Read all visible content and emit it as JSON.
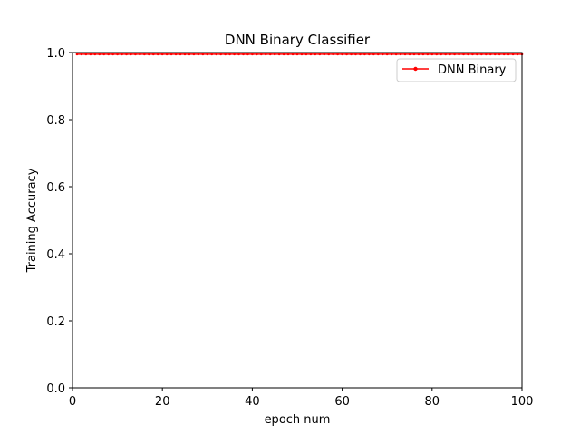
{
  "chart_data": {
    "type": "line",
    "title": "DNN Binary Classifier",
    "xlabel": "epoch num",
    "ylabel": "Training Accuracy",
    "xlim": [
      0,
      100
    ],
    "ylim": [
      0,
      1.0
    ],
    "xticks": [
      0,
      20,
      40,
      60,
      80,
      100
    ],
    "xtick_labels": [
      "0",
      "20",
      "40",
      "60",
      "80",
      "100"
    ],
    "yticks": [
      0,
      0.2,
      0.4,
      0.6,
      0.8,
      1.0
    ],
    "ytick_labels": [
      "0.0",
      "0.2",
      "0.4",
      "0.6",
      "0.8",
      "1.0"
    ],
    "grid": false,
    "legend_position": "top-right",
    "series": [
      {
        "name": "DNN Binary",
        "color": "#ff0000",
        "marker": "dot",
        "x": [
          1,
          2,
          3,
          4,
          5,
          6,
          7,
          8,
          9,
          10,
          11,
          12,
          13,
          14,
          15,
          16,
          17,
          18,
          19,
          20,
          21,
          22,
          23,
          24,
          25,
          26,
          27,
          28,
          29,
          30,
          31,
          32,
          33,
          34,
          35,
          36,
          37,
          38,
          39,
          40,
          41,
          42,
          43,
          44,
          45,
          46,
          47,
          48,
          49,
          50,
          51,
          52,
          53,
          54,
          55,
          56,
          57,
          58,
          59,
          60,
          61,
          62,
          63,
          64,
          65,
          66,
          67,
          68,
          69,
          70,
          71,
          72,
          73,
          74,
          75,
          76,
          77,
          78,
          79,
          80,
          81,
          82,
          83,
          84,
          85,
          86,
          87,
          88,
          89,
          90,
          91,
          92,
          93,
          94,
          95,
          96,
          97,
          98,
          99,
          100
        ],
        "y": [
          0.995,
          0.995,
          0.995,
          0.995,
          0.995,
          0.995,
          0.995,
          0.995,
          0.995,
          0.995,
          0.995,
          0.995,
          0.995,
          0.995,
          0.995,
          0.995,
          0.995,
          0.995,
          0.995,
          0.995,
          0.995,
          0.995,
          0.995,
          0.995,
          0.995,
          0.995,
          0.995,
          0.995,
          0.995,
          0.995,
          0.995,
          0.995,
          0.995,
          0.995,
          0.995,
          0.995,
          0.995,
          0.995,
          0.995,
          0.995,
          0.995,
          0.995,
          0.995,
          0.995,
          0.995,
          0.995,
          0.995,
          0.995,
          0.995,
          0.995,
          0.995,
          0.995,
          0.995,
          0.995,
          0.995,
          0.995,
          0.995,
          0.995,
          0.995,
          0.995,
          0.995,
          0.995,
          0.995,
          0.995,
          0.995,
          0.995,
          0.995,
          0.995,
          0.995,
          0.995,
          0.995,
          0.995,
          0.995,
          0.995,
          0.995,
          0.995,
          0.995,
          0.995,
          0.995,
          0.995,
          0.995,
          0.995,
          0.995,
          0.995,
          0.995,
          0.995,
          0.995,
          0.995,
          0.995,
          0.995,
          0.995,
          0.995,
          0.995,
          0.995,
          0.995,
          0.995,
          0.995,
          0.995,
          0.995,
          0.995
        ]
      }
    ]
  }
}
